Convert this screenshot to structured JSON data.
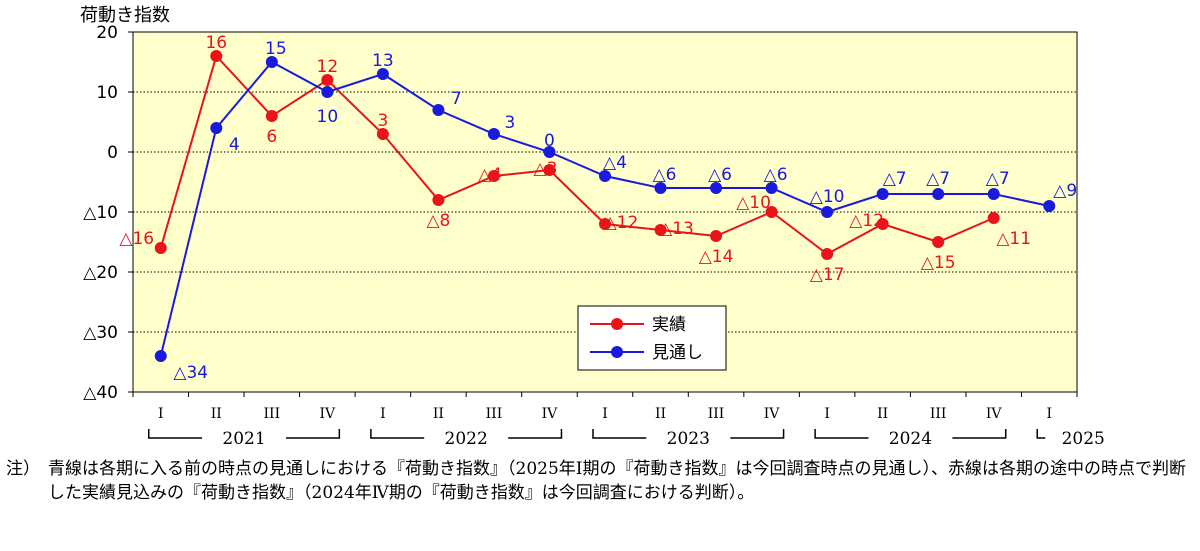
{
  "chart_data": {
    "type": "line",
    "ylabel": "荷動き指数",
    "ylim": [
      -40,
      20
    ],
    "yticks": [
      {
        "value": 20,
        "label": "20"
      },
      {
        "value": 10,
        "label": "10"
      },
      {
        "value": 0,
        "label": "0"
      },
      {
        "value": -10,
        "label": "△10"
      },
      {
        "value": -20,
        "label": "△20"
      },
      {
        "value": -30,
        "label": "△30"
      },
      {
        "value": -40,
        "label": "△40"
      }
    ],
    "categories": [
      "I",
      "II",
      "III",
      "IV",
      "I",
      "II",
      "III",
      "IV",
      "I",
      "II",
      "III",
      "IV",
      "I",
      "II",
      "III",
      "IV",
      "I"
    ],
    "years": [
      {
        "label": "2021",
        "start": 0,
        "end": 3
      },
      {
        "label": "2022",
        "start": 4,
        "end": 7
      },
      {
        "label": "2023",
        "start": 8,
        "end": 11
      },
      {
        "label": "2024",
        "start": 12,
        "end": 15
      },
      {
        "label": "2025",
        "start": 16,
        "end": 16
      }
    ],
    "series": [
      {
        "name": "実績",
        "color": "#e8141a",
        "values": [
          -16,
          16,
          6,
          12,
          3,
          -8,
          -4,
          -3,
          -12,
          -13,
          -14,
          -10,
          -17,
          -12,
          -15,
          -11,
          null
        ],
        "labels": [
          "△16",
          "16",
          "6",
          "12",
          "3",
          "△8",
          "△4",
          "△3",
          "△12",
          "△13",
          "△14",
          "△10",
          "△17",
          "△12",
          "△15",
          "△11",
          ""
        ]
      },
      {
        "name": "見通し",
        "color": "#1a1adc",
        "values": [
          -34,
          4,
          15,
          10,
          13,
          7,
          3,
          0,
          -4,
          -6,
          -6,
          -6,
          -10,
          -7,
          -7,
          -7,
          -9
        ],
        "labels": [
          "△34",
          "4",
          "15",
          "10",
          "13",
          "7",
          "3",
          "0",
          "△4",
          "△6",
          "△6",
          "△6",
          "△10",
          "△7",
          "△7",
          "△7",
          "△9"
        ]
      }
    ],
    "grid": true,
    "legend_position": "bottom-center",
    "plot_background": "#ffffcc"
  },
  "note": {
    "lead": "注）",
    "text": "青線は各期に入る前の時点の見通しにおける『荷動き指数』（2025年Ⅰ期の『荷動き指数』は今回調査時点の見通し）、赤線は各期の途中の時点で判断した実績見込みの『荷動き指数』（2024年Ⅳ期の『荷動き指数』は今回調査における判断）。"
  }
}
